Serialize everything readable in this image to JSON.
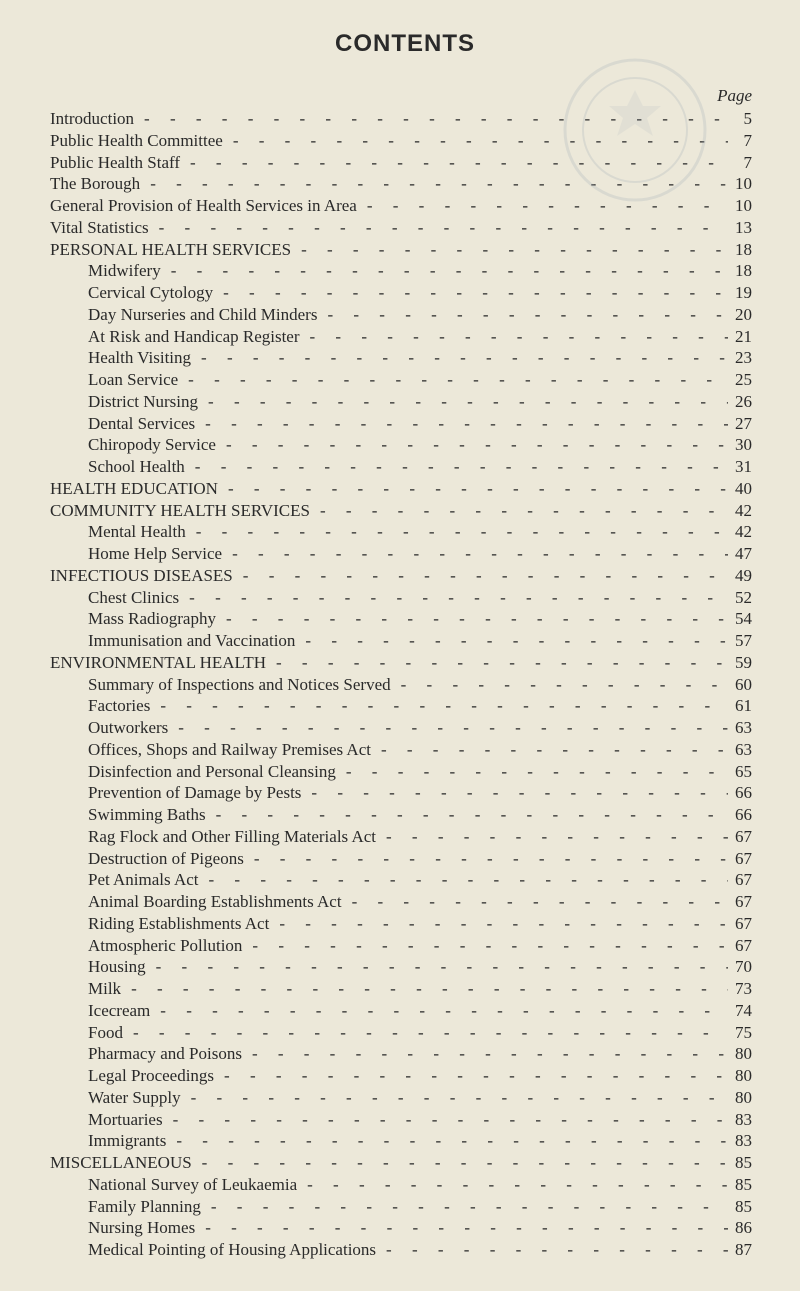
{
  "title": "CONTENTS",
  "page_header": "Page",
  "typography": {
    "title_font": "Arial, Helvetica, sans-serif",
    "title_size_pt": 18,
    "body_font": "Times New Roman, Times, serif",
    "body_size_pt": 12,
    "page_header_style": "italic"
  },
  "colors": {
    "background": "#ece8d9",
    "text": "#2a2a2a",
    "stamp": "#9aa7b5"
  },
  "leader_char": "-",
  "entries": [
    {
      "label": "Introduction",
      "page": "5",
      "indent": 0
    },
    {
      "label": "Public Health Committee",
      "page": "7",
      "indent": 0
    },
    {
      "label": "Public Health Staff",
      "page": "7",
      "indent": 0
    },
    {
      "label": "The Borough",
      "page": "10",
      "indent": 0
    },
    {
      "label": "General Provision of Health Services in Area",
      "page": "10",
      "indent": 0
    },
    {
      "label": "Vital Statistics",
      "page": "13",
      "indent": 0
    },
    {
      "label": "PERSONAL HEALTH SERVICES",
      "page": "18",
      "indent": 0
    },
    {
      "label": "Midwifery",
      "page": "18",
      "indent": 1
    },
    {
      "label": "Cervical Cytology",
      "page": "19",
      "indent": 1
    },
    {
      "label": "Day Nurseries and Child Minders",
      "page": "20",
      "indent": 1
    },
    {
      "label": "At Risk and Handicap Register",
      "page": "21",
      "indent": 1
    },
    {
      "label": "Health Visiting",
      "page": "23",
      "indent": 1
    },
    {
      "label": "Loan Service",
      "page": "25",
      "indent": 1
    },
    {
      "label": "District Nursing",
      "page": "26",
      "indent": 1
    },
    {
      "label": "Dental Services",
      "page": "27",
      "indent": 1
    },
    {
      "label": "Chiropody Service",
      "page": "30",
      "indent": 1
    },
    {
      "label": "School Health",
      "page": "31",
      "indent": 1
    },
    {
      "label": "HEALTH EDUCATION",
      "page": "40",
      "indent": 0
    },
    {
      "label": "COMMUNITY HEALTH SERVICES",
      "page": "42",
      "indent": 0
    },
    {
      "label": "Mental Health",
      "page": "42",
      "indent": 1
    },
    {
      "label": "Home Help Service",
      "page": "47",
      "indent": 1
    },
    {
      "label": "INFECTIOUS DISEASES",
      "page": "49",
      "indent": 0
    },
    {
      "label": "Chest Clinics",
      "page": "52",
      "indent": 1
    },
    {
      "label": "Mass Radiography",
      "page": "54",
      "indent": 1
    },
    {
      "label": "Immunisation and Vaccination",
      "page": "57",
      "indent": 1
    },
    {
      "label": "ENVIRONMENTAL HEALTH",
      "page": "59",
      "indent": 0
    },
    {
      "label": "Summary of Inspections and Notices Served",
      "page": "60",
      "indent": 1
    },
    {
      "label": "Factories",
      "page": "61",
      "indent": 1
    },
    {
      "label": "Outworkers",
      "page": "63",
      "indent": 1
    },
    {
      "label": "Offices, Shops and Railway Premises Act",
      "page": "63",
      "indent": 1
    },
    {
      "label": "Disinfection and Personal Cleansing",
      "page": "65",
      "indent": 1
    },
    {
      "label": "Prevention of Damage by Pests",
      "page": "66",
      "indent": 1
    },
    {
      "label": "Swimming Baths",
      "page": "66",
      "indent": 1
    },
    {
      "label": "Rag Flock and Other Filling Materials Act",
      "page": "67",
      "indent": 1
    },
    {
      "label": "Destruction of Pigeons",
      "page": "67",
      "indent": 1
    },
    {
      "label": "Pet Animals Act",
      "page": "67",
      "indent": 1
    },
    {
      "label": "Animal Boarding Establishments Act",
      "page": "67",
      "indent": 1
    },
    {
      "label": "Riding Establishments Act",
      "page": "67",
      "indent": 1
    },
    {
      "label": "Atmospheric Pollution",
      "page": "67",
      "indent": 1
    },
    {
      "label": "Housing",
      "page": "70",
      "indent": 1
    },
    {
      "label": "Milk",
      "page": "73",
      "indent": 1
    },
    {
      "label": "Icecream",
      "page": "74",
      "indent": 1
    },
    {
      "label": "Food",
      "page": "75",
      "indent": 1
    },
    {
      "label": "Pharmacy and Poisons",
      "page": "80",
      "indent": 1
    },
    {
      "label": "Legal Proceedings",
      "page": "80",
      "indent": 1
    },
    {
      "label": "Water Supply",
      "page": "80",
      "indent": 1
    },
    {
      "label": "Mortuaries",
      "page": "83",
      "indent": 1
    },
    {
      "label": "Immigrants",
      "page": "83",
      "indent": 1
    },
    {
      "label": "MISCELLANEOUS",
      "page": "85",
      "indent": 0
    },
    {
      "label": "National Survey of Leukaemia",
      "page": "85",
      "indent": 1
    },
    {
      "label": "Family Planning",
      "page": "85",
      "indent": 1
    },
    {
      "label": "Nursing Homes",
      "page": "86",
      "indent": 1
    },
    {
      "label": "Medical Pointing of Housing Applications",
      "page": "87",
      "indent": 1
    }
  ]
}
